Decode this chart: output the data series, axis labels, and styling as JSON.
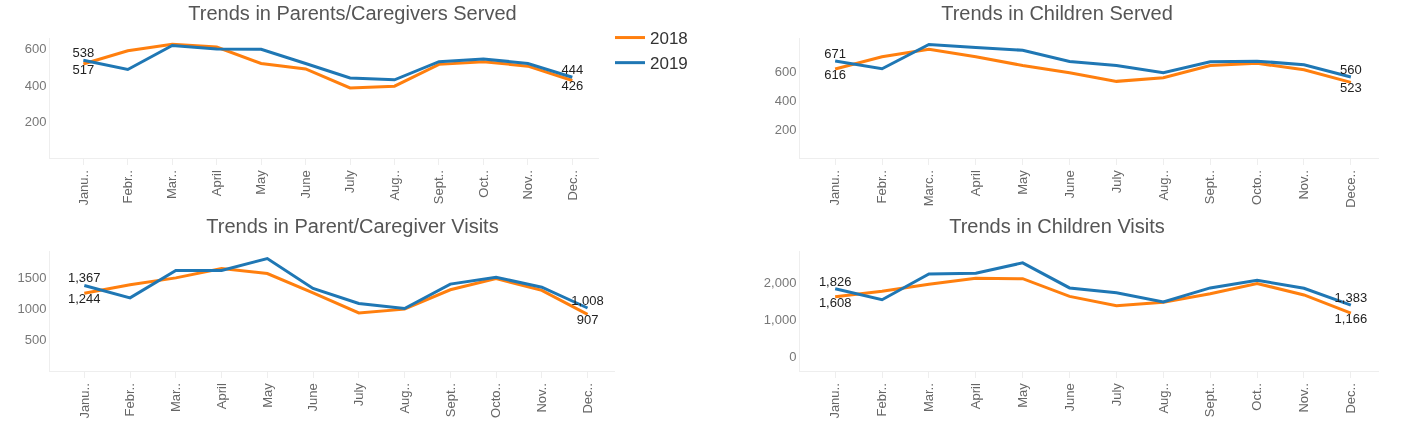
{
  "chart_data": [
    {
      "type": "line",
      "title": "Trends in Parents/Caregivers Served",
      "legend": "top right",
      "categories": [
        "Janu..",
        "Febr..",
        "Mar..",
        "April",
        "May",
        "June",
        "July",
        "Aug..",
        "Sept..",
        "Oct..",
        "Nov..",
        "Dec.."
      ],
      "ylim": [
        0,
        660
      ],
      "yticks": [
        200,
        400,
        600
      ],
      "series": [
        {
          "name": "2018",
          "color": "#ff7f0e",
          "values": [
            517,
            590,
            625,
            610,
            520,
            490,
            385,
            395,
            515,
            530,
            505,
            426
          ],
          "value_labels": [
            "517",
            null,
            null,
            null,
            null,
            null,
            null,
            null,
            null,
            null,
            null,
            "426"
          ]
        },
        {
          "name": "2019",
          "color": "#1f77b4",
          "values": [
            538,
            487,
            619,
            600,
            598,
            520,
            440,
            430,
            530,
            545,
            520,
            444
          ],
          "value_labels": [
            "538",
            null,
            null,
            null,
            null,
            null,
            null,
            null,
            null,
            null,
            null,
            "444"
          ]
        }
      ]
    },
    {
      "type": "line",
      "title": "Trends in Children Served",
      "categories": [
        "Janu..",
        "Febr..",
        "Marc..",
        "April",
        "May",
        "June",
        "July",
        "Aug..",
        "Sept..",
        "Octo..",
        "Nov..",
        "Dece.."
      ],
      "ylim": [
        0,
        830
      ],
      "yticks": [
        200,
        400,
        600
      ],
      "series": [
        {
          "name": "2018",
          "color": "#ff7f0e",
          "values": [
            616,
            700,
            752,
            700,
            640,
            590,
            530,
            555,
            640,
            655,
            610,
            523
          ],
          "value_labels": [
            "616",
            null,
            null,
            null,
            null,
            null,
            null,
            null,
            null,
            null,
            null,
            "523"
          ]
        },
        {
          "name": "2019",
          "color": "#1f77b4",
          "values": [
            671,
            617,
            785,
            765,
            745,
            668,
            640,
            590,
            665,
            670,
            645,
            560
          ],
          "value_labels": [
            "671",
            null,
            null,
            null,
            null,
            null,
            null,
            null,
            null,
            null,
            null,
            "560"
          ]
        }
      ]
    },
    {
      "type": "line",
      "title": "Trends in Parent/Caregiver Visits",
      "categories": [
        "Janu..",
        "Febr..",
        "Mar..",
        "April",
        "May",
        "June",
        "July",
        "Aug..",
        "Sept..",
        "Octo..",
        "Nov..",
        "Dec.."
      ],
      "ylim": [
        0,
        1920
      ],
      "yticks": [
        500,
        1000,
        1500
      ],
      "series": [
        {
          "name": "2018",
          "color": "#ff7f0e",
          "values": [
            1244,
            1380,
            1490,
            1640,
            1560,
            1250,
            930,
            990,
            1300,
            1480,
            1290,
            907
          ],
          "value_labels": [
            "1,244",
            null,
            null,
            null,
            null,
            null,
            null,
            null,
            null,
            null,
            null,
            "907"
          ]
        },
        {
          "name": "2019",
          "color": "#1f77b4",
          "values": [
            1367,
            1170,
            1610,
            1610,
            1800,
            1320,
            1080,
            1000,
            1390,
            1500,
            1340,
            1008
          ],
          "value_labels": [
            "1,367",
            null,
            null,
            null,
            null,
            null,
            null,
            null,
            null,
            null,
            null,
            "1,008"
          ]
        }
      ]
    },
    {
      "type": "line",
      "title": "Trends in Children Visits",
      "categories": [
        "Janu..",
        "Febr..",
        "Mar..",
        "April",
        "May",
        "June",
        "July",
        "Aug..",
        "Sept..",
        "Oct..",
        "Nov..",
        "Dec.."
      ],
      "ylim": [
        -400,
        2850
      ],
      "yticks": [
        0,
        {
          "value": 1000,
          "label": "1,000"
        },
        {
          "value": 2000,
          "label": "2,000"
        }
      ],
      "series": [
        {
          "name": "2018",
          "color": "#ff7f0e",
          "values": [
            1608,
            1760,
            1950,
            2110,
            2100,
            1620,
            1370,
            1460,
            1690,
            1970,
            1660,
            1166
          ],
          "value_labels": [
            "1,608",
            null,
            null,
            null,
            null,
            null,
            null,
            null,
            null,
            null,
            null,
            "1,166"
          ]
        },
        {
          "name": "2019",
          "color": "#1f77b4",
          "values": [
            1826,
            1530,
            2230,
            2250,
            2530,
            1850,
            1720,
            1470,
            1850,
            2060,
            1840,
            1383
          ],
          "value_labels": [
            "1,826",
            null,
            null,
            null,
            null,
            null,
            null,
            null,
            null,
            null,
            null,
            "1,383"
          ]
        }
      ]
    }
  ]
}
